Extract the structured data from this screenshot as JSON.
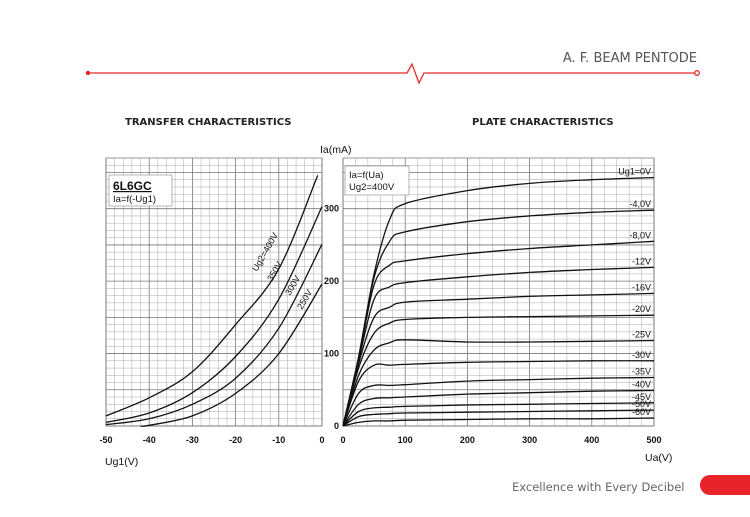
{
  "header": {
    "title": "A. F. BEAM PENTODE",
    "accent_color": "#e52b2b"
  },
  "footer": {
    "tagline": "Excellence with Every Decibel",
    "pill_color": "#e8232a"
  },
  "chart_data": [
    {
      "type": "line",
      "title": "TRANSFER CHARACTERISTICS",
      "legend": {
        "tube": "6L6GC",
        "function": "Ia=f(-Ug1)",
        "placement": "top-left"
      },
      "xlabel": "Ug1(V)",
      "ylabel": "Ia(mA)",
      "xlim": [
        -50,
        0
      ],
      "ylim": [
        0,
        370
      ],
      "xticks": [
        "-50",
        "-40",
        "-30",
        "-20",
        "-10",
        "0"
      ],
      "xtick_values": [
        -50,
        -40,
        -30,
        -20,
        -10,
        0
      ],
      "yticks": [
        "0",
        "100",
        "200",
        "300"
      ],
      "ytick_values": [
        0,
        100,
        200,
        300
      ],
      "grid": true,
      "series": [
        {
          "name": "Ug2=400V",
          "x": [
            -50,
            -40,
            -30,
            -20,
            -10,
            -1
          ],
          "y": [
            14,
            39,
            75,
            140,
            217,
            346
          ]
        },
        {
          "name": "350V",
          "x": [
            -50,
            -40,
            -30,
            -20,
            -10,
            0
          ],
          "y": [
            5,
            18,
            46,
            96,
            175,
            303
          ]
        },
        {
          "name": "300V",
          "x": [
            -50,
            -40,
            -30,
            -20,
            -10,
            0
          ],
          "y": [
            2,
            10,
            30,
            66,
            135,
            251
          ]
        },
        {
          "name": "250V",
          "x": [
            -42,
            -40,
            -30,
            -20,
            -10,
            0
          ],
          "y": [
            0,
            1,
            14,
            45,
            100,
            196
          ]
        }
      ]
    },
    {
      "type": "line",
      "title": "PLATE CHARACTERISTICS",
      "legend": {
        "function": "Ia=f(Ua)",
        "condition": "Ug2=400V",
        "placement": "top-left"
      },
      "xlabel": "Ua(V)",
      "ylabel": "Ia(mA)",
      "xlim": [
        0,
        500
      ],
      "ylim": [
        0,
        370
      ],
      "xticks": [
        "0",
        "100",
        "200",
        "300",
        "400",
        "500"
      ],
      "xtick_values": [
        0,
        100,
        200,
        300,
        400,
        500
      ],
      "grid": true,
      "x": [
        0,
        25,
        50,
        75,
        100,
        200,
        300,
        400,
        500
      ],
      "series": [
        {
          "name": "Ug1=0V",
          "values": [
            0,
            95,
            210,
            285,
            307,
            325,
            335,
            340,
            343
          ]
        },
        {
          "name": "-4,0V",
          "values": [
            0,
            95,
            205,
            255,
            268,
            282,
            290,
            295,
            298
          ]
        },
        {
          "name": "-8,0V",
          "values": [
            0,
            92,
            195,
            222,
            228,
            238,
            245,
            250,
            255
          ]
        },
        {
          "name": "-12V",
          "values": [
            0,
            90,
            175,
            192,
            198,
            206,
            212,
            216,
            219
          ]
        },
        {
          "name": "-16V",
          "values": [
            0,
            86,
            150,
            164,
            171,
            175,
            179,
            181,
            183
          ]
        },
        {
          "name": "-20V",
          "values": [
            0,
            80,
            128,
            142,
            147,
            150,
            151,
            152,
            153
          ]
        },
        {
          "name": "-25V",
          "values": [
            0,
            70,
            105,
            115,
            119,
            116,
            116,
            117,
            118
          ]
        },
        {
          "name": "-30V",
          "values": [
            0,
            62,
            84,
            84,
            85,
            88,
            89,
            90,
            90
          ]
        },
        {
          "name": "-35V",
          "values": [
            0,
            45,
            56,
            56,
            57,
            62,
            64,
            66,
            67
          ]
        },
        {
          "name": "-40V",
          "values": [
            0,
            30,
            38,
            39,
            40,
            44,
            46,
            48,
            49
          ]
        },
        {
          "name": "-45V",
          "values": [
            0,
            20,
            25,
            26,
            27,
            29,
            30,
            31,
            32
          ]
        },
        {
          "name": "-50V",
          "values": [
            0,
            13,
            16,
            17,
            18,
            19,
            20,
            21,
            22
          ]
        },
        {
          "name": "-60V",
          "values": [
            0,
            5,
            7,
            7,
            8,
            9,
            10,
            10,
            11
          ]
        }
      ]
    }
  ]
}
